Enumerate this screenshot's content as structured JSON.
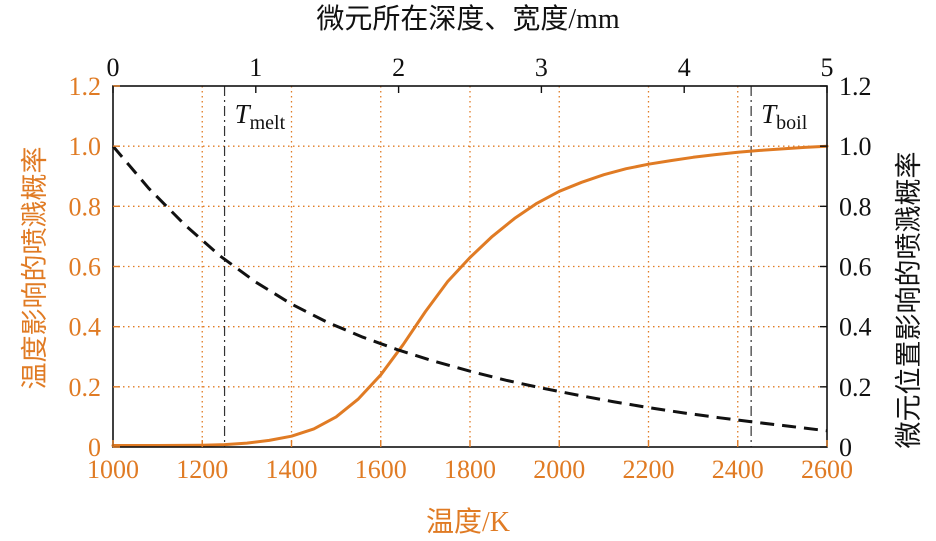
{
  "colors": {
    "accent": "#e07b24",
    "black": "#111111"
  },
  "chart_data": {
    "type": "line",
    "bottom_axis": {
      "label": "温度/K",
      "range": [
        1000,
        2600
      ],
      "ticks": [
        "1000",
        "1200",
        "1400",
        "1600",
        "1800",
        "2000",
        "2200",
        "2400",
        "2600"
      ]
    },
    "top_axis": {
      "label": "微元所在深度、宽度/mm",
      "range": [
        0,
        5
      ],
      "ticks": [
        "0",
        "1",
        "2",
        "3",
        "4",
        "5"
      ]
    },
    "left_axis": {
      "label": "温度影响的喷溅概率",
      "range": [
        0,
        1.2
      ],
      "ticks": [
        "0",
        "0.2",
        "0.4",
        "0.6",
        "0.8",
        "1.0",
        "1.2"
      ]
    },
    "right_axis": {
      "label": "微元位置影响的喷溅概率",
      "range": [
        0,
        1.2
      ],
      "ticks": [
        "0",
        "0.2",
        "0.4",
        "0.6",
        "0.8",
        "1.0",
        "1.2"
      ]
    },
    "grid": true,
    "markers": [
      {
        "symbol": "T",
        "sub": "melt",
        "x": 1250
      },
      {
        "symbol": "T",
        "sub": "boil",
        "x": 2430
      }
    ],
    "series": [
      {
        "axis": "bottom-left",
        "color": "#e07b24",
        "style": "solid",
        "x": [
          1000,
          1100,
          1200,
          1250,
          1300,
          1350,
          1400,
          1450,
          1500,
          1550,
          1600,
          1650,
          1700,
          1750,
          1800,
          1850,
          1900,
          1950,
          2000,
          2050,
          2100,
          2150,
          2200,
          2250,
          2300,
          2350,
          2400,
          2450,
          2500,
          2550,
          2600
        ],
        "y": [
          0.005,
          0.005,
          0.006,
          0.008,
          0.013,
          0.022,
          0.036,
          0.06,
          0.1,
          0.16,
          0.24,
          0.34,
          0.45,
          0.55,
          0.63,
          0.7,
          0.76,
          0.81,
          0.85,
          0.88,
          0.905,
          0.925,
          0.94,
          0.952,
          0.963,
          0.972,
          0.98,
          0.986,
          0.991,
          0.996,
          1.0
        ]
      },
      {
        "axis": "top-right",
        "color": "#111111",
        "style": "dashed",
        "x": [
          0,
          0.25,
          0.5,
          0.75,
          1.0,
          1.25,
          1.5,
          1.75,
          2.0,
          2.25,
          2.5,
          2.75,
          3.0,
          3.25,
          3.5,
          3.75,
          4.0,
          4.25,
          4.5,
          4.75,
          5.0
        ],
        "y": [
          1.0,
          0.86,
          0.74,
          0.635,
          0.548,
          0.475,
          0.415,
          0.365,
          0.322,
          0.285,
          0.252,
          0.222,
          0.196,
          0.173,
          0.151,
          0.131,
          0.113,
          0.097,
          0.082,
          0.068,
          0.054
        ]
      }
    ]
  }
}
